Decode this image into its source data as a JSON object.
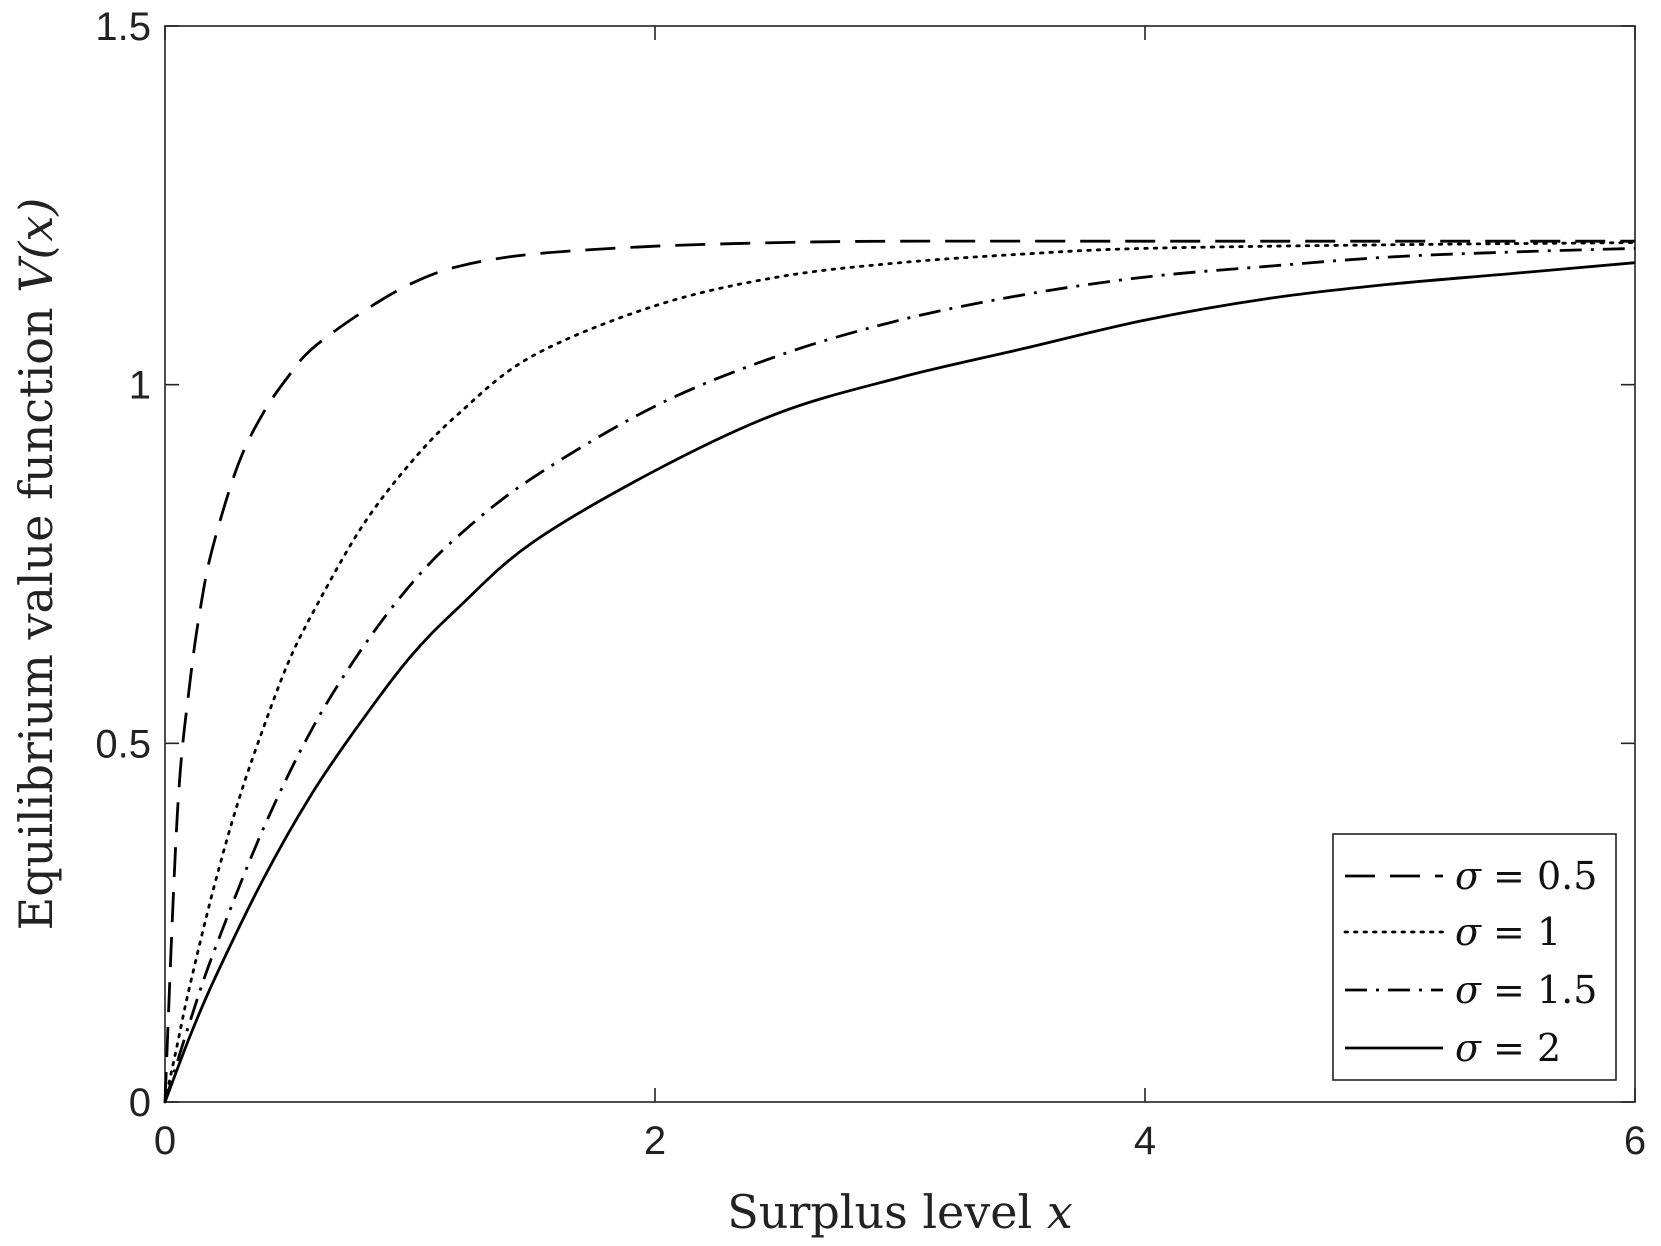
{
  "chart_data": {
    "type": "line",
    "xlabel": "Surplus level",
    "xlabel_var": "x",
    "ylabel": "Equilibrium value function",
    "ylabel_var": "V(x)",
    "xlim": [
      0,
      6
    ],
    "ylim": [
      0,
      1.5
    ],
    "xticks": [
      "0",
      "2",
      "4",
      "6"
    ],
    "yticks": [
      "0",
      "0.5",
      "1",
      "1.5"
    ],
    "grid": false,
    "legend_position": "bottom-right",
    "series": [
      {
        "name": "σ = 0.5",
        "var": "σ",
        "rest": " = 0.5",
        "style": "dashed",
        "x": [
          0,
          0.05,
          0.1,
          0.15,
          0.2,
          0.3,
          0.4,
          0.5,
          0.6,
          0.8,
          1.0,
          1.2,
          1.5,
          2.0,
          2.5,
          3.0,
          4.0,
          5.0,
          6.0
        ],
        "y": [
          0,
          0.4,
          0.58,
          0.7,
          0.78,
          0.89,
          0.96,
          1.01,
          1.05,
          1.1,
          1.14,
          1.165,
          1.182,
          1.193,
          1.198,
          1.2,
          1.2,
          1.2,
          1.2
        ]
      },
      {
        "name": "σ = 1",
        "var": "σ",
        "rest": " = 1",
        "style": "dotted",
        "x": [
          0,
          0.05,
          0.1,
          0.2,
          0.3,
          0.4,
          0.5,
          0.6,
          0.8,
          1.0,
          1.2,
          1.5,
          2.0,
          2.5,
          3.0,
          3.5,
          4.0,
          5.0,
          6.0
        ],
        "y": [
          0,
          0.08,
          0.16,
          0.3,
          0.42,
          0.52,
          0.61,
          0.68,
          0.8,
          0.89,
          0.96,
          1.04,
          1.11,
          1.15,
          1.17,
          1.182,
          1.19,
          1.195,
          1.198
        ]
      },
      {
        "name": "σ = 1.5",
        "var": "σ",
        "rest": " = 1.5",
        "style": "dashdot",
        "x": [
          0,
          0.1,
          0.2,
          0.4,
          0.6,
          0.8,
          1.0,
          1.2,
          1.5,
          2.0,
          2.5,
          3.0,
          3.5,
          4.0,
          4.5,
          5.0,
          5.5,
          6.0
        ],
        "y": [
          0,
          0.11,
          0.21,
          0.38,
          0.52,
          0.63,
          0.72,
          0.79,
          0.87,
          0.97,
          1.04,
          1.09,
          1.125,
          1.15,
          1.165,
          1.178,
          1.185,
          1.19
        ]
      },
      {
        "name": "σ = 2",
        "var": "σ",
        "rest": " = 2",
        "style": "solid",
        "x": [
          0,
          0.1,
          0.2,
          0.4,
          0.6,
          0.8,
          1.0,
          1.2,
          1.5,
          2.0,
          2.5,
          3.0,
          3.5,
          4.0,
          4.5,
          5.0,
          5.5,
          6.0
        ],
        "y": [
          0,
          0.09,
          0.17,
          0.31,
          0.43,
          0.53,
          0.62,
          0.69,
          0.78,
          0.88,
          0.96,
          1.01,
          1.05,
          1.09,
          1.12,
          1.14,
          1.155,
          1.17
        ]
      }
    ]
  },
  "colors": {
    "line": "#000000",
    "axis": "#222222",
    "background": "#ffffff"
  }
}
